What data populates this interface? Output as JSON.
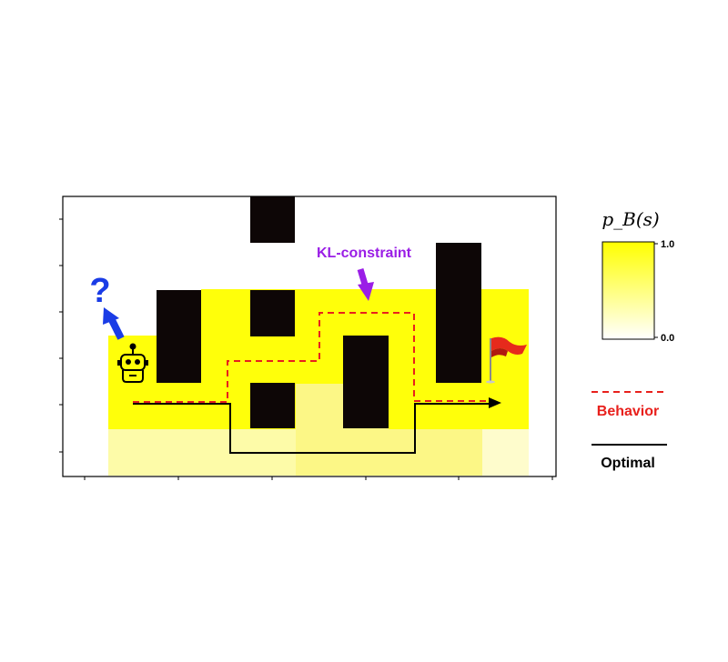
{
  "annotations": {
    "question_mark": "?",
    "kl_constraint": "KL-constraint"
  },
  "colorbar": {
    "title": "p_B(s)",
    "max_label": "1.0",
    "min_label": "0.0",
    "color_low": "#ffffff",
    "color_high": "#ffff00"
  },
  "legend": {
    "behavior_label": "Behavior",
    "optimal_label": "Optimal",
    "behavior_color": "#e8201c",
    "optimal_color": "#000000"
  },
  "colors": {
    "wall": "#0d0606",
    "density_high": "#ffff0a",
    "density_low": "#fdfba8",
    "density_mid": "#fcf786",
    "density_faint": "#fefccc",
    "robot_arrow": "#1a3ce6",
    "kl_arrow": "#9a1ee6",
    "flag": "#e62a1c"
  },
  "icons": {
    "agent": "robot-icon",
    "goal": "red-flag-icon"
  }
}
